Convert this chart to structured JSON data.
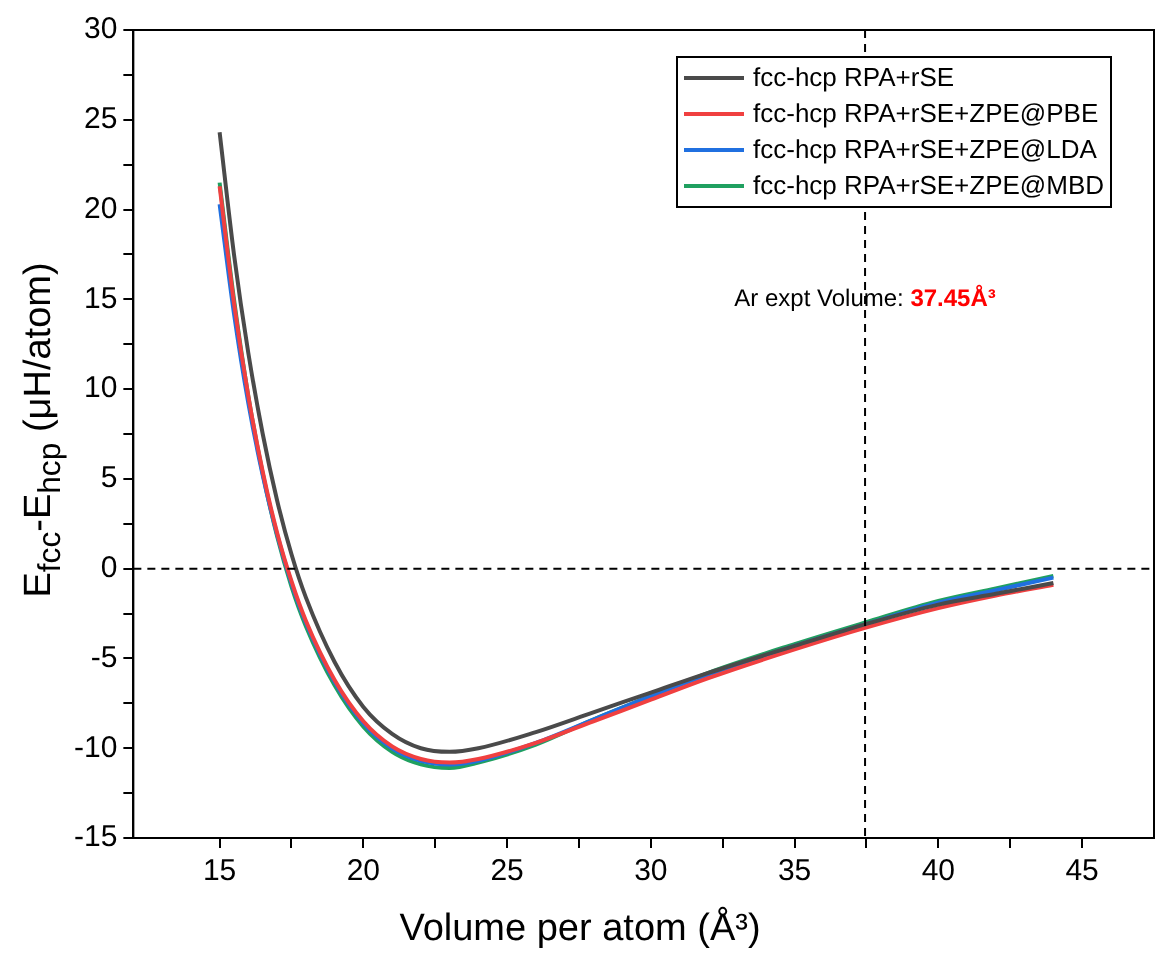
{
  "chart_data": {
    "type": "line",
    "xlabel": "Volume per atom (Å³)",
    "ylabel": "E$_{fcc}$-E$_{hcp}$ (μH/atom)",
    "x": [
      15,
      15.5,
      16,
      16.5,
      17,
      17.5,
      18,
      19,
      20,
      21,
      22,
      23,
      24,
      26,
      28,
      30,
      32,
      35,
      37.45,
      40,
      42,
      44
    ],
    "series": [
      {
        "name": "fcc-hcp RPA+rSE",
        "color": "#4a4a4a",
        "values": [
          24.3,
          17.5,
          12,
          7.5,
          3.8,
          0.8,
          -1.6,
          -5.2,
          -7.7,
          -9.2,
          -10.0,
          -10.2,
          -10.0,
          -9.1,
          -8.0,
          -6.9,
          -5.8,
          -4.3,
          -3.1,
          -2.0,
          -1.4,
          -0.8
        ]
      },
      {
        "name": "fcc-hcp RPA+rSE+ZPE@PBE",
        "color": "#f04040",
        "values": [
          21.3,
          14.8,
          9.6,
          5.4,
          2.0,
          -0.7,
          -2.9,
          -6.2,
          -8.5,
          -9.9,
          -10.6,
          -10.8,
          -10.6,
          -9.7,
          -8.5,
          -7.3,
          -6.1,
          -4.5,
          -3.3,
          -2.2,
          -1.5,
          -0.9
        ]
      },
      {
        "name": "fcc-hcp RPA+rSE+ZPE@LDA",
        "color": "#2070e0",
        "values": [
          20.3,
          14.2,
          9.2,
          5.2,
          1.9,
          -0.8,
          -3.0,
          -6.3,
          -8.6,
          -10.0,
          -10.7,
          -10.9,
          -10.7,
          -9.7,
          -8.4,
          -7.1,
          -5.9,
          -4.3,
          -3.1,
          -1.9,
          -1.2,
          -0.5
        ]
      },
      {
        "name": "fcc-hcp RPA+rSE+ZPE@MBD",
        "color": "#20a060",
        "values": [
          21.5,
          15.0,
          9.6,
          5.3,
          1.8,
          -1.0,
          -3.2,
          -6.5,
          -8.8,
          -10.2,
          -10.9,
          -11.1,
          -10.8,
          -9.8,
          -8.4,
          -7.1,
          -5.8,
          -4.2,
          -3.0,
          -1.8,
          -1.1,
          -0.4
        ]
      }
    ],
    "xlim": [
      12,
      47.5
    ],
    "xticks": [
      15,
      {
        "value": 17.5,
        "label": null
      },
      20,
      {
        "value": 22.5,
        "label": null
      },
      25,
      {
        "value": 27.5,
        "label": null
      },
      30,
      {
        "value": 32.5,
        "label": null
      },
      35,
      {
        "value": 37.5,
        "label": null
      },
      40,
      {
        "value": 42.5,
        "label": null
      },
      45
    ],
    "ylim": [
      -15,
      30
    ],
    "yticks": [
      -15,
      {
        "value": -12.5,
        "label": null
      },
      -10,
      {
        "value": -7.5,
        "label": null
      },
      -5,
      {
        "value": -2.5,
        "label": null
      },
      0,
      {
        "value": 2.5,
        "label": null
      },
      5,
      {
        "value": 7.5,
        "label": null
      },
      10,
      {
        "value": 12.5,
        "label": null
      },
      15,
      {
        "value": 17.5,
        "label": null
      },
      20,
      {
        "value": 22.5,
        "label": null
      },
      25,
      {
        "value": 27.5,
        "label": null
      },
      30
    ],
    "ref_lines": [
      {
        "axis": "y",
        "value": 0,
        "color": "#000000",
        "line_style": "dashed"
      },
      {
        "axis": "x",
        "value": 37.45,
        "color": "#000000",
        "line_style": "dashed"
      }
    ],
    "annotations": [
      {
        "text": "Ar expt Volume: 37.45Å³",
        "x": 37.45,
        "y": 15
      }
    ],
    "legend": "top right",
    "grid": false,
    "marker": "none",
    "line_style": "solid"
  }
}
